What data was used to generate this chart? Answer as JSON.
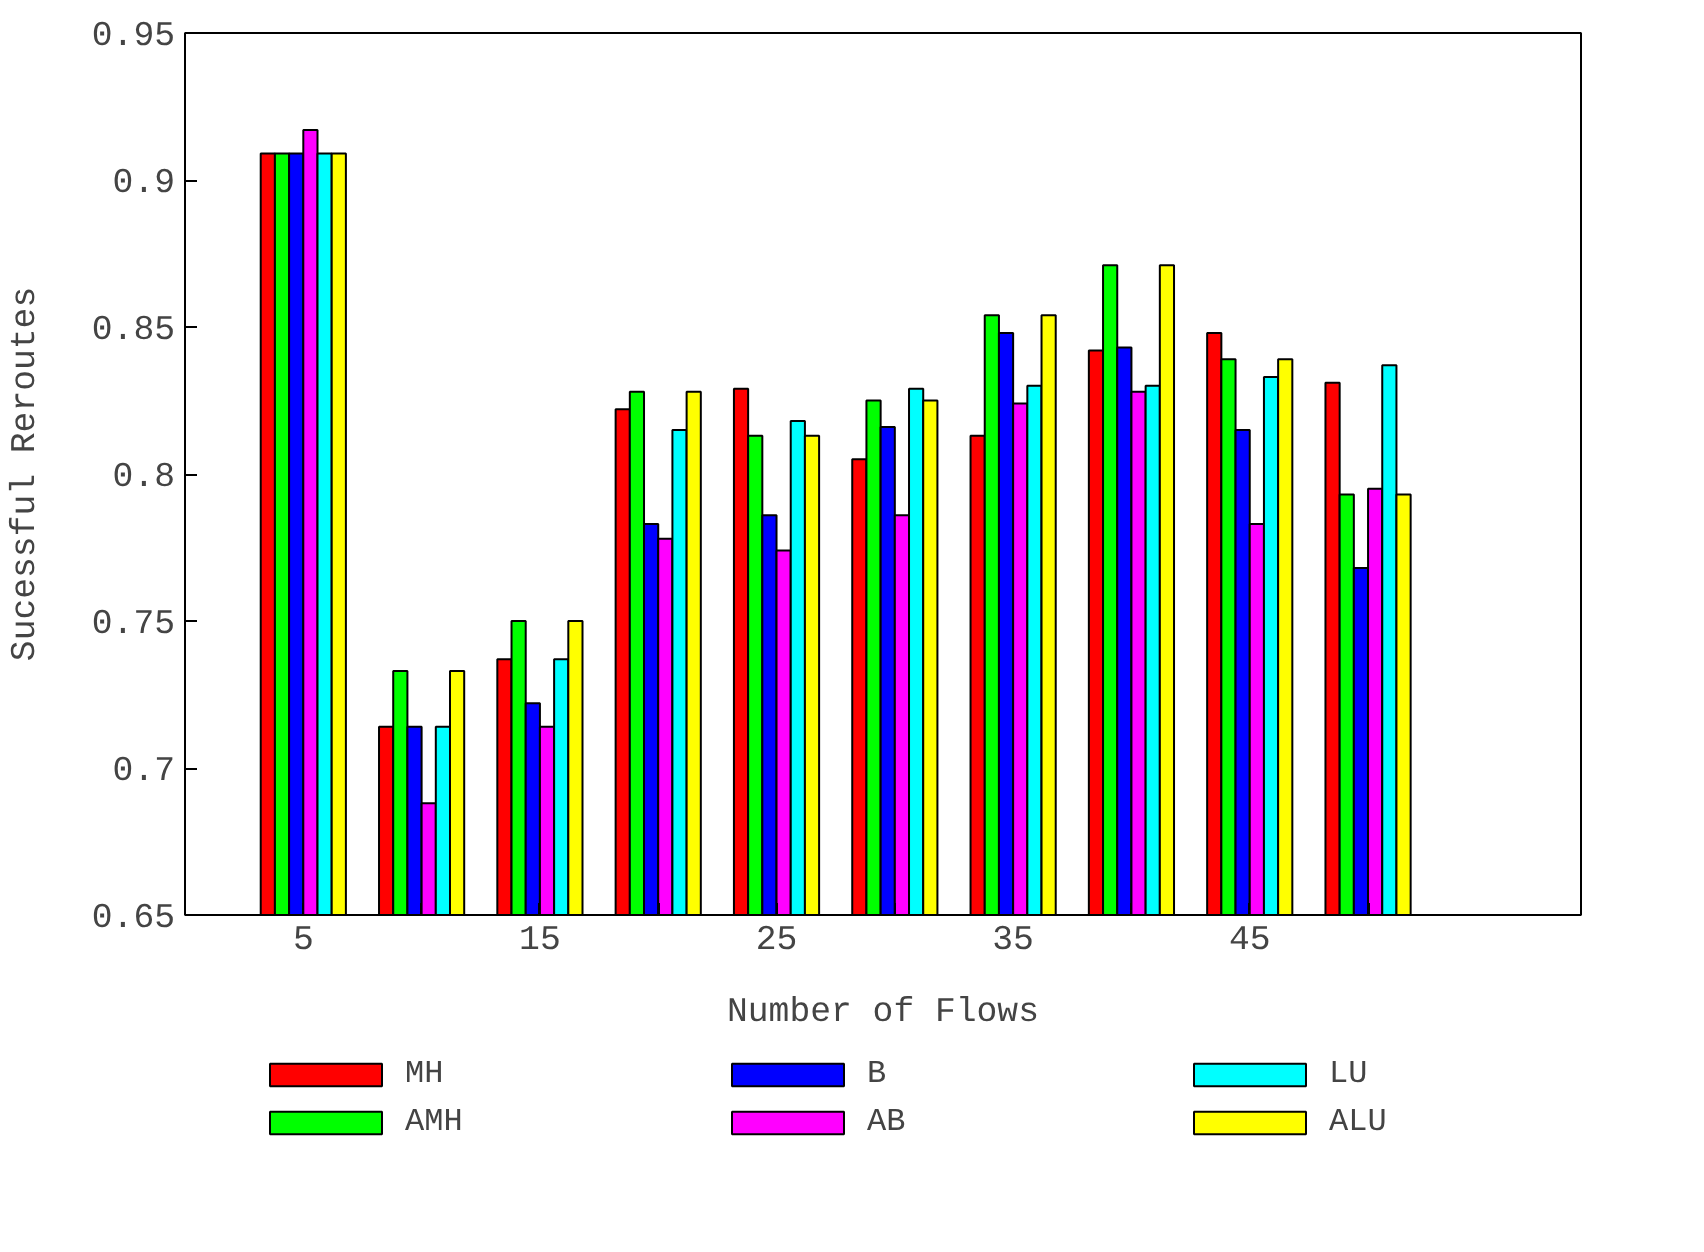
{
  "chart_data": {
    "type": "bar",
    "xlabel": "Number of Flows",
    "ylabel": "Sucessful Reroutes",
    "categories": [
      "5",
      null,
      "15",
      null,
      "25",
      null,
      "35",
      null,
      "45",
      null
    ],
    "series": [
      {
        "name": "MH",
        "color": "#ff0000",
        "values": [
          0.909,
          0.714,
          0.737,
          0.822,
          0.829,
          0.805,
          0.813,
          0.842,
          0.848,
          0.831
        ]
      },
      {
        "name": "AMH",
        "color": "#00ff00",
        "values": [
          0.909,
          0.733,
          0.75,
          0.828,
          0.813,
          0.825,
          0.854,
          0.871,
          0.839,
          0.793
        ]
      },
      {
        "name": "B",
        "color": "#0000ff",
        "values": [
          0.909,
          0.714,
          0.722,
          0.783,
          0.786,
          0.816,
          0.848,
          0.843,
          0.815,
          0.768
        ]
      },
      {
        "name": "AB",
        "color": "#ff00ff",
        "values": [
          0.917,
          0.688,
          0.714,
          0.778,
          0.774,
          0.786,
          0.824,
          0.828,
          0.783,
          0.795
        ]
      },
      {
        "name": "LU",
        "color": "#00ffff",
        "values": [
          0.909,
          0.714,
          0.737,
          0.815,
          0.818,
          0.829,
          0.83,
          0.83,
          0.833,
          0.837
        ]
      },
      {
        "name": "ALU",
        "color": "#ffff00",
        "values": [
          0.909,
          0.733,
          0.75,
          0.828,
          0.813,
          0.825,
          0.854,
          0.871,
          0.839,
          0.793
        ]
      }
    ],
    "ylim": [
      0.65,
      0.95
    ],
    "yticks": [
      0.65,
      0.7,
      0.75,
      0.8,
      0.85,
      0.9,
      0.95
    ],
    "grid": false,
    "legend": "bottom"
  }
}
